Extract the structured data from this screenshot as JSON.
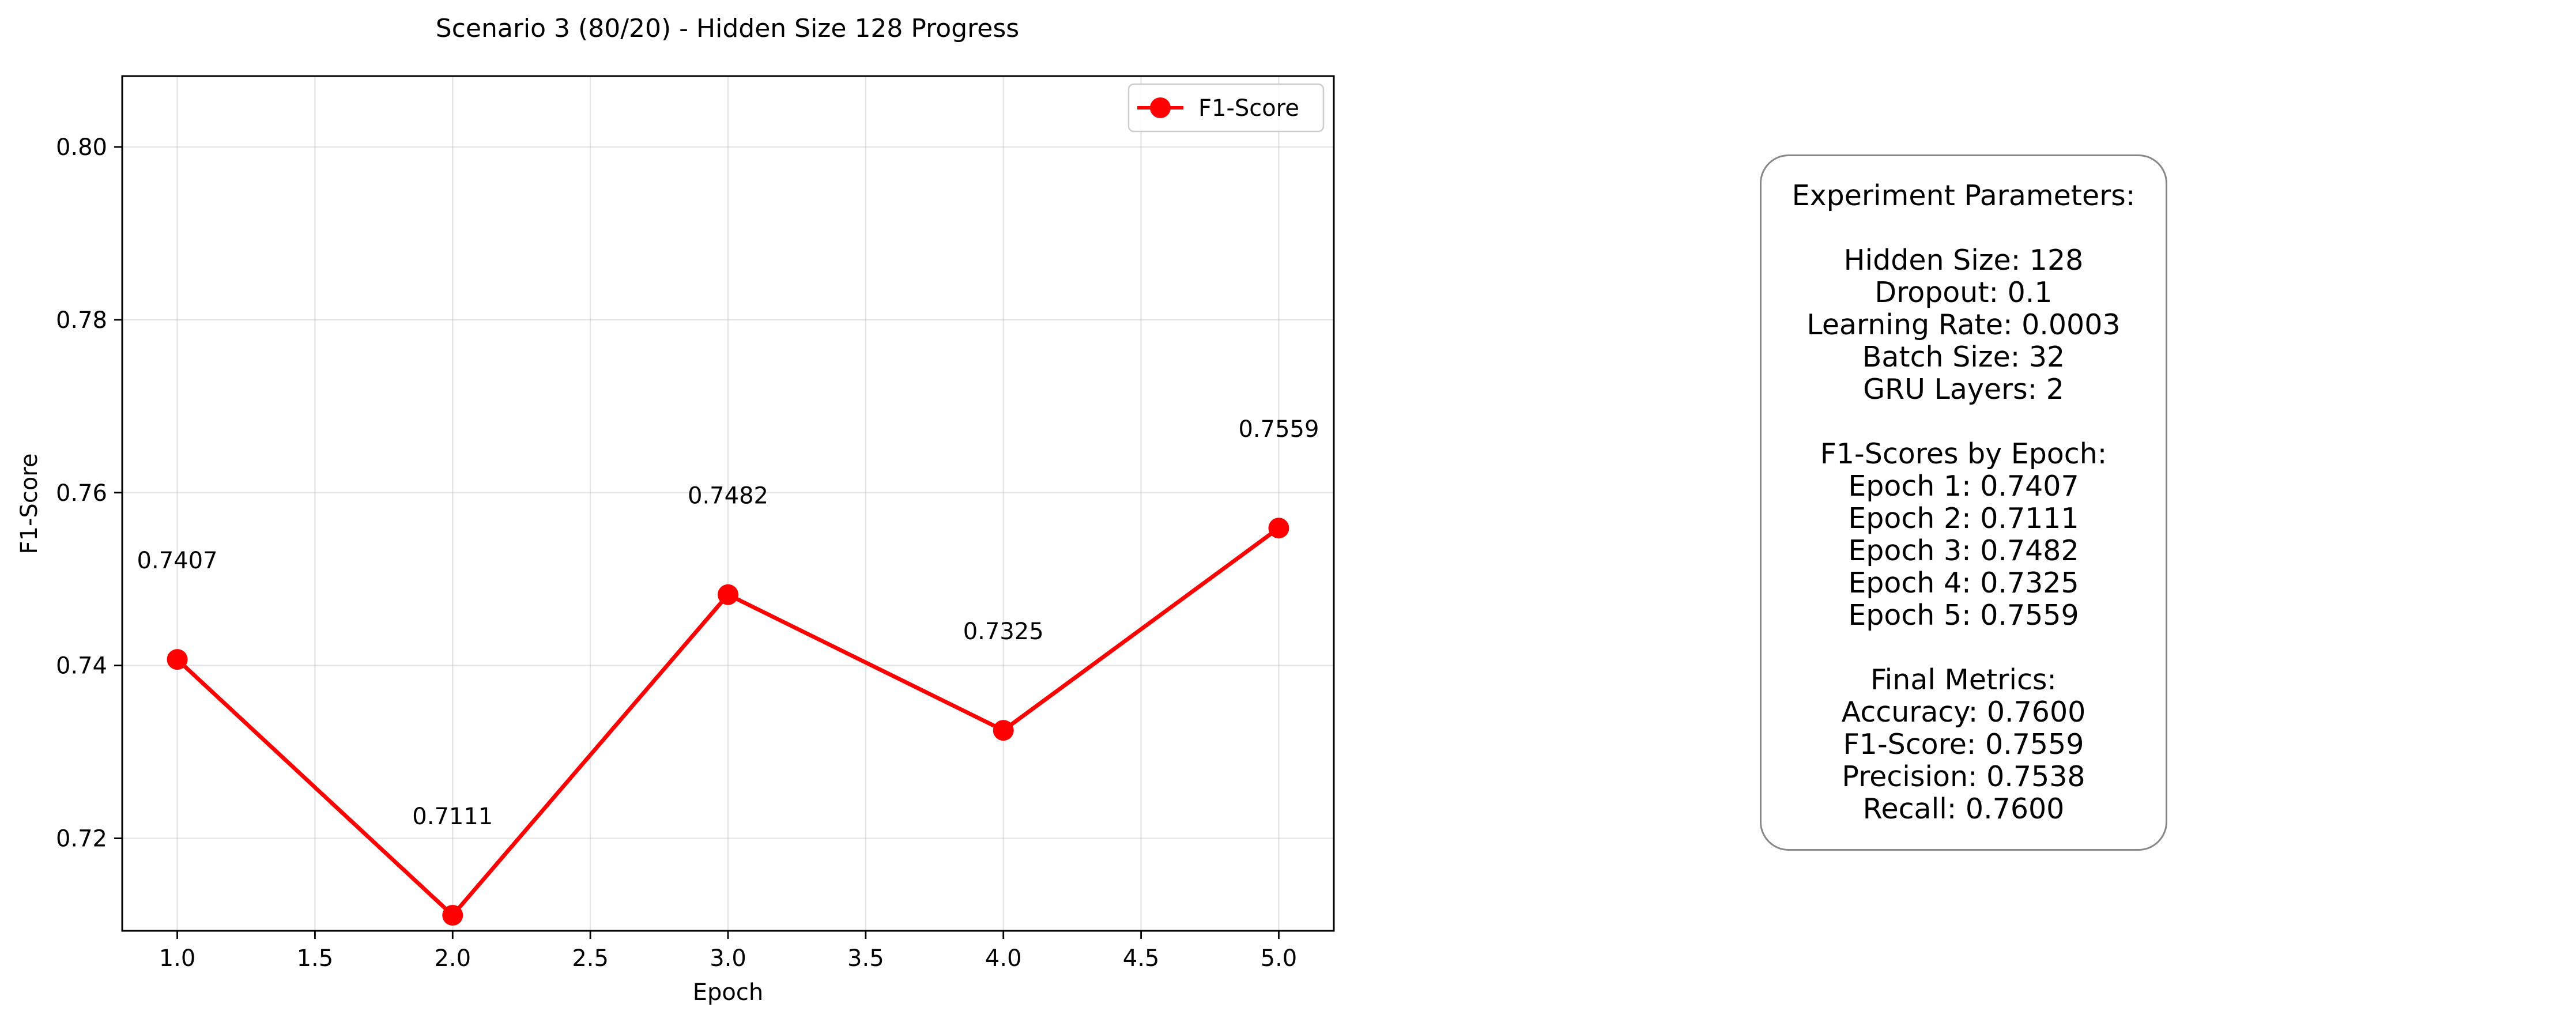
{
  "chart_data": {
    "type": "line",
    "title": "Scenario 3 (80/20) - Hidden Size 128 Progress",
    "xlabel": "Epoch",
    "ylabel": "F1-Score",
    "x": [
      1.0,
      2.0,
      3.0,
      4.0,
      5.0
    ],
    "series": [
      {
        "name": "F1-Score",
        "color": "#ff0000",
        "marker": "circle",
        "values": [
          0.7407,
          0.7111,
          0.7482,
          0.7325,
          0.7559
        ]
      }
    ],
    "data_labels": [
      "0.7407",
      "0.7111",
      "0.7482",
      "0.7325",
      "0.7559"
    ],
    "xlim": [
      0.8,
      5.2
    ],
    "ylim": [
      0.7093,
      0.8082
    ],
    "xticks": [
      1.0,
      1.5,
      2.0,
      2.5,
      3.0,
      3.5,
      4.0,
      4.5,
      5.0
    ],
    "xtick_labels": [
      "1.0",
      "1.5",
      "2.0",
      "2.5",
      "3.0",
      "3.5",
      "4.0",
      "4.5",
      "5.0"
    ],
    "yticks": [
      0.72,
      0.74,
      0.76,
      0.78,
      0.8
    ],
    "ytick_labels": [
      "0.72",
      "0.74",
      "0.76",
      "0.78",
      "0.80"
    ],
    "grid": true,
    "legend_position": "top-right"
  },
  "params_box": {
    "lines": [
      "Experiment Parameters:",
      "",
      "Hidden Size: 128",
      "Dropout: 0.1",
      "Learning Rate: 0.0003",
      "Batch Size: 32",
      "GRU Layers: 2",
      "",
      "F1-Scores by Epoch:",
      "Epoch 1: 0.7407",
      "Epoch 2: 0.7111",
      "Epoch 3: 0.7482",
      "Epoch 4: 0.7325",
      "Epoch 5: 0.7559",
      "",
      "Final Metrics:",
      "Accuracy: 0.7600",
      "F1-Score: 0.7559",
      "Precision: 0.7538",
      "Recall: 0.7600"
    ]
  }
}
